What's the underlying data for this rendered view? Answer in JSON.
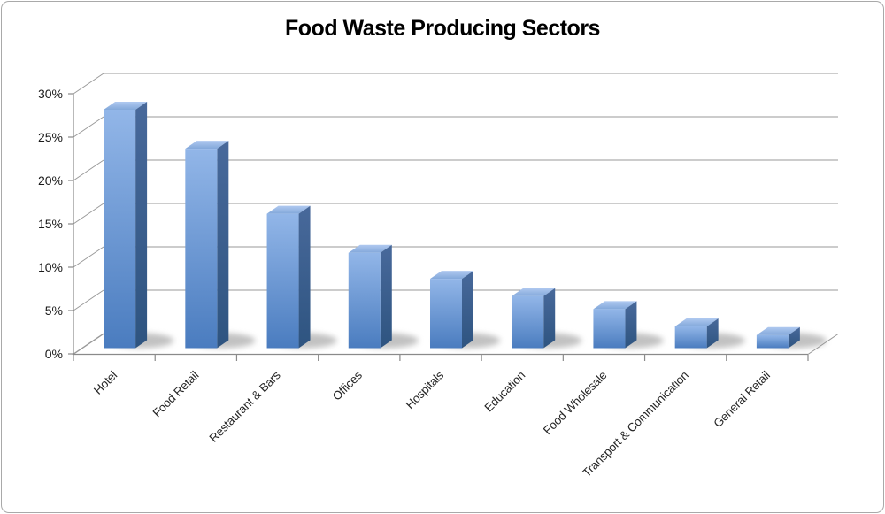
{
  "chart_data": {
    "type": "bar",
    "style": "3d-column",
    "title": "Food Waste Producing Sectors",
    "categories": [
      "Hotel",
      "Food Retail",
      "Restaurant & Bars",
      "Offices",
      "Hospitals",
      "Education",
      "Food Wholesale",
      "Transport & Communication",
      "General Retail"
    ],
    "values": [
      27.5,
      23,
      15.5,
      11,
      8,
      6,
      4.5,
      2.5,
      1.5
    ],
    "unit": "%",
    "xlabel": "",
    "ylabel": "",
    "y_ticks": [
      "0%",
      "5%",
      "10%",
      "15%",
      "20%",
      "25%",
      "30%"
    ],
    "y_tick_values": [
      0,
      5,
      10,
      15,
      20,
      25,
      30
    ],
    "ylim": [
      0,
      30
    ],
    "grid": true,
    "legend": "none",
    "colors": {
      "bar_base": "#4F81BD",
      "front_gradient": [
        "#92b6e8",
        "#4a7cbf"
      ],
      "top_gradient": [
        "#b0c9f0",
        "#83a8da"
      ],
      "side_gradient": [
        "#48699b",
        "#2e5480"
      ],
      "gridline": "#999999",
      "axis": "#8a8a8a",
      "tick_label": "#1a1a1a",
      "category_label": "#262626",
      "title": "#000000",
      "shadow": "#8f8f8f",
      "frame_border": "#a9a9a9",
      "background": "#ffffff"
    }
  }
}
